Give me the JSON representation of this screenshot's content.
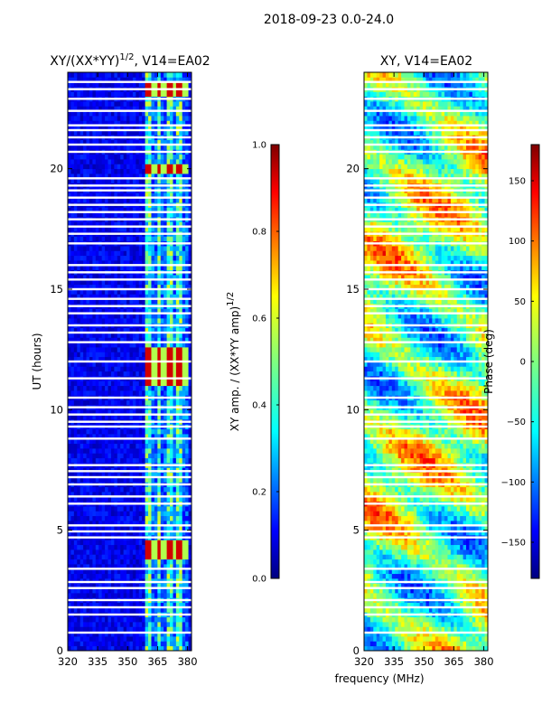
{
  "figure": {
    "suptitle": "2018-09-23 0.0-24.0",
    "xlabel": "frequency (MHz)"
  },
  "left_panel": {
    "title_main": "XY/(XX*YY)",
    "title_sup": "1/2",
    "title_suffix": ", V14=EA02",
    "ylabel": "UT (hours)",
    "colorbar_label": "XY amp. / (XX*YY amp)",
    "colorbar_label_sup": "1/2"
  },
  "right_panel": {
    "title": "XY, V14=EA02",
    "colorbar_label": "Phase (deg)"
  },
  "colors": {
    "jet": [
      "#00007f",
      "#0000ff",
      "#007fff",
      "#00ffff",
      "#7fff7f",
      "#ffff00",
      "#ff7f00",
      "#ff0000",
      "#7f0000"
    ]
  },
  "chart_data": [
    {
      "type": "heatmap",
      "title": "XY/(XX*YY)^1/2, V14=EA02",
      "xlabel": "frequency (MHz)",
      "ylabel": "UT (hours)",
      "xlim": [
        320,
        382
      ],
      "ylim": [
        0,
        24
      ],
      "xticks": [
        320,
        335,
        350,
        365,
        380
      ],
      "yticks": [
        0,
        5,
        10,
        15,
        20
      ],
      "colormap": "jet",
      "clim": [
        0.0,
        1.0
      ],
      "colorbar_ticks": [
        "0.0",
        "0.2",
        "0.4",
        "0.6",
        "0.8",
        "1.0"
      ],
      "colorbar_label": "XY amp. / (XX*YY amp)^1/2",
      "high_band_mhz": [
        359,
        381
      ],
      "peak_hours": [
        [
          3.9,
          4.5
        ],
        [
          11.0,
          12.5
        ],
        [
          19.8,
          20.2
        ],
        [
          23.1,
          23.6
        ]
      ],
      "blank_hours": [
        0.75,
        1.5,
        1.8,
        2.1,
        2.6,
        2.85,
        3.4,
        4.7,
        4.95,
        5.2,
        6.1,
        6.4,
        6.9,
        7.2,
        7.45,
        7.7,
        8.8,
        9.3,
        9.5,
        9.8,
        10.1,
        10.5,
        11.3,
        12.0,
        12.8,
        13.2,
        13.5,
        14.0,
        14.3,
        14.6,
        15.0,
        15.4,
        15.7,
        16.0,
        16.9,
        17.3,
        17.6,
        17.9,
        18.2,
        18.5,
        18.8,
        19.1,
        19.3,
        19.6,
        20.7,
        21.0,
        21.3,
        21.6,
        21.8,
        22.4,
        22.9,
        23.3,
        23.6
      ]
    },
    {
      "type": "heatmap",
      "title": "XY, V14=EA02",
      "xlabel": "frequency (MHz)",
      "ylabel": "",
      "xlim": [
        320,
        382
      ],
      "ylim": [
        0,
        24
      ],
      "xticks": [
        320,
        335,
        350,
        365,
        380
      ],
      "yticks": [
        0,
        5,
        10,
        15,
        20
      ],
      "colormap": "jet",
      "clim": [
        -180,
        180
      ],
      "colorbar_ticks": [
        "−150",
        "−100",
        "−50",
        "0",
        "50",
        "100",
        "150"
      ],
      "colorbar_tick_values": [
        -150,
        -100,
        -50,
        0,
        50,
        100,
        150
      ],
      "colorbar_label": "Phase (deg)",
      "blank_hours": [
        0.75,
        1.5,
        1.8,
        2.1,
        2.6,
        2.85,
        3.4,
        4.7,
        4.95,
        5.2,
        6.1,
        6.4,
        6.9,
        7.2,
        7.45,
        7.7,
        8.8,
        9.3,
        9.5,
        9.8,
        10.1,
        10.5,
        11.3,
        12.0,
        12.8,
        13.2,
        13.5,
        14.0,
        14.3,
        14.6,
        15.0,
        15.4,
        15.7,
        16.0,
        16.9,
        17.3,
        17.6,
        17.9,
        18.2,
        18.5,
        18.8,
        19.1,
        19.3,
        19.6,
        20.7,
        21.0,
        21.3,
        21.6,
        21.8,
        22.4,
        22.9,
        23.3,
        23.6
      ]
    }
  ]
}
